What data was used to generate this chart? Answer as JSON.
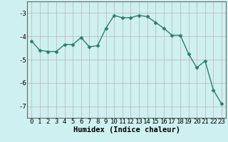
{
  "x": [
    0,
    1,
    2,
    3,
    4,
    5,
    6,
    7,
    8,
    9,
    10,
    11,
    12,
    13,
    14,
    15,
    16,
    17,
    18,
    19,
    20,
    21,
    22,
    23
  ],
  "y": [
    -4.2,
    -4.6,
    -4.65,
    -4.65,
    -4.35,
    -4.35,
    -4.05,
    -4.45,
    -4.4,
    -3.65,
    -3.1,
    -3.2,
    -3.2,
    -3.1,
    -3.15,
    -3.4,
    -3.65,
    -3.95,
    -3.95,
    -4.75,
    -5.35,
    -5.05,
    -6.3,
    -6.9
  ],
  "xlabel": "Humidex (Indice chaleur)",
  "ylim": [
    -7.5,
    -2.5
  ],
  "xlim": [
    -0.5,
    23.5
  ],
  "yticks": [
    -7,
    -6,
    -5,
    -4,
    -3
  ],
  "xticks": [
    0,
    1,
    2,
    3,
    4,
    5,
    6,
    7,
    8,
    9,
    10,
    11,
    12,
    13,
    14,
    15,
    16,
    17,
    18,
    19,
    20,
    21,
    22,
    23
  ],
  "line_color": "#2e7d6e",
  "bg_color": "#cef0f0",
  "grid_color_v": "#c0b0b0",
  "grid_color_h": "#c0b0b0",
  "marker_size": 2.5,
  "line_width": 1.0,
  "tick_fontsize": 6.5,
  "xlabel_fontsize": 7.5
}
